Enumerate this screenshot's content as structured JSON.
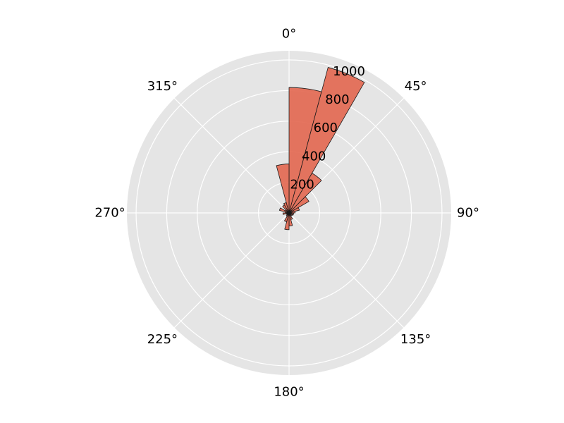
{
  "chart_data": {
    "type": "bar",
    "polar": true,
    "theta_zero": "N",
    "theta_direction": "clockwise",
    "bin_width_deg": 15,
    "angle_ticks": [
      "0°",
      "45°",
      "90°",
      "135°",
      "180°",
      "225°",
      "270°",
      "315°"
    ],
    "angle_tick_values": [
      0,
      45,
      90,
      135,
      180,
      225,
      270,
      315
    ],
    "r_ticks": [
      200,
      400,
      600,
      800,
      1000
    ],
    "r_tick_labels": [
      "200",
      "400",
      "600",
      "800",
      "1000"
    ],
    "r_label_angle_deg": 22.5,
    "rlim": [
      0,
      1060
    ],
    "grid": true,
    "bins": [
      {
        "start": 0,
        "value": 820
      },
      {
        "start": 15,
        "value": 985
      },
      {
        "start": 30,
        "value": 300
      },
      {
        "start": 45,
        "value": 150
      },
      {
        "start": 60,
        "value": 70
      },
      {
        "start": 75,
        "value": 40
      },
      {
        "start": 90,
        "value": 30
      },
      {
        "start": 105,
        "value": 30
      },
      {
        "start": 120,
        "value": 25
      },
      {
        "start": 135,
        "value": 20
      },
      {
        "start": 150,
        "value": 45
      },
      {
        "start": 165,
        "value": 85
      },
      {
        "start": 180,
        "value": 110
      },
      {
        "start": 195,
        "value": 60
      },
      {
        "start": 210,
        "value": 25
      },
      {
        "start": 225,
        "value": 15
      },
      {
        "start": 240,
        "value": 20
      },
      {
        "start": 255,
        "value": 40
      },
      {
        "start": 270,
        "value": 25
      },
      {
        "start": 285,
        "value": 65
      },
      {
        "start": 300,
        "value": 30
      },
      {
        "start": 315,
        "value": 60
      },
      {
        "start": 330,
        "value": 70
      },
      {
        "start": 345,
        "value": 320
      }
    ],
    "colors": {
      "bar_fill": "#e2664f",
      "bar_opacity": 0.9,
      "bar_edge": "#1a1a1a",
      "axes_background": "#e5e5e5",
      "grid": "#ffffff"
    }
  }
}
